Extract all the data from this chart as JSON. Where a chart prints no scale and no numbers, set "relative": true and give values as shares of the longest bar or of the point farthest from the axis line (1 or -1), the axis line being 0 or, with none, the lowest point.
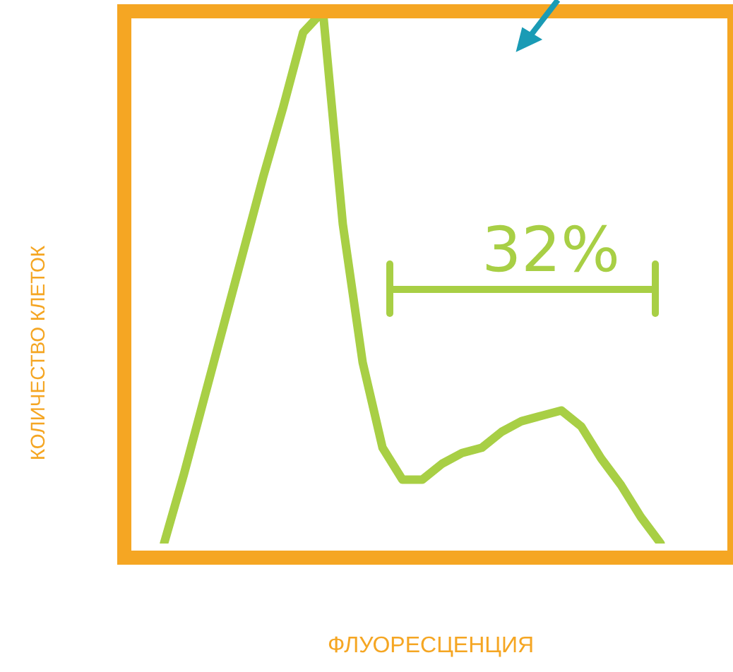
{
  "chart_data": {
    "type": "line",
    "relative": true,
    "ylabel": "КОЛИЧЕСТВО КЛЕТОК",
    "xlabel": "ФЛУОРЕСЦЕНЦИЯ",
    "annotations": [
      "32%"
    ],
    "legend": false,
    "grid": false,
    "marker": "none",
    "line_style": "solid",
    "categories": [
      null,
      null,
      null,
      null,
      null,
      null,
      null,
      null,
      null,
      null,
      null,
      null,
      null,
      null,
      null,
      null,
      null,
      null,
      null,
      null,
      null,
      null,
      null,
      null,
      null,
      null,
      null,
      null,
      null,
      null,
      null
    ],
    "series": [
      {
        "color": "#a8cf45",
        "values": [
          null,
          null,
          0,
          0.13,
          0.27,
          0.41,
          0.55,
          0.69,
          0.82,
          0.96,
          1,
          0.6,
          0.34,
          0.18,
          0.12,
          0.12,
          0.15,
          0.17,
          0.18,
          0.21,
          0.23,
          0.24,
          0.25,
          0.22,
          0.16,
          0.11,
          0.05,
          0,
          null,
          null,
          null
        ]
      }
    ]
  }
}
